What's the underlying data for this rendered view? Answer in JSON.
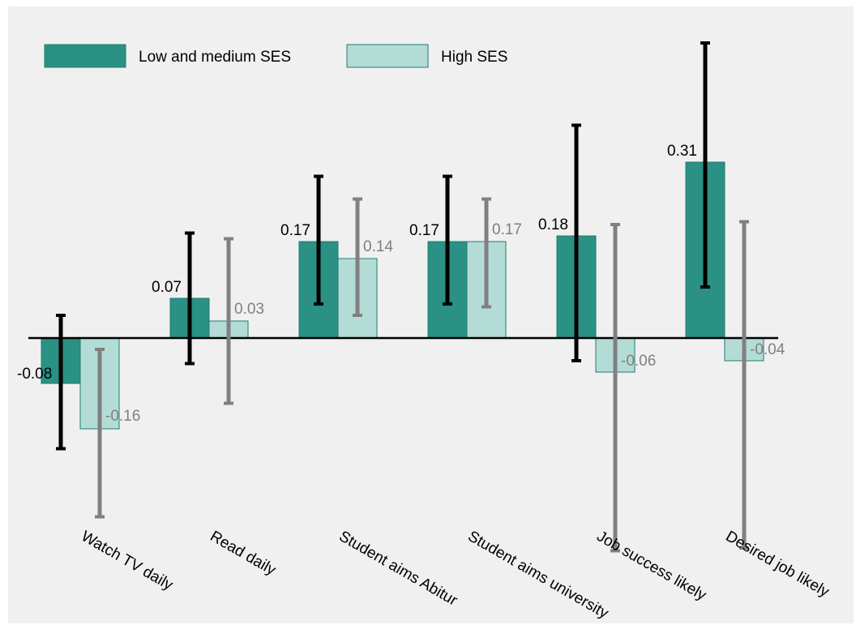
{
  "chart_data": {
    "type": "bar",
    "categories": [
      "Watch TV daily",
      "Read daily",
      "Student aims Abitur",
      "Student aims university",
      "Job success likely",
      "Desired job likely"
    ],
    "series": [
      {
        "name": "Low and medium SES",
        "values": [
          -0.08,
          0.07,
          0.17,
          0.17,
          0.18,
          0.31
        ],
        "labels": [
          "-0.08",
          "0.07",
          "0.17",
          "0.17",
          "0.18",
          "0.31"
        ],
        "ci_low": [
          -0.195,
          -0.045,
          0.06,
          0.06,
          -0.04,
          0.09
        ],
        "ci_high": [
          0.04,
          0.185,
          0.285,
          0.285,
          0.375,
          0.52
        ],
        "color": "#2a9184",
        "error_color": "#000000",
        "label_color": "#000000"
      },
      {
        "name": "High SES",
        "values": [
          -0.16,
          0.03,
          0.14,
          0.17,
          -0.06,
          -0.04
        ],
        "labels": [
          "-0.16",
          "0.03",
          "0.14",
          "0.17",
          "-0.06",
          "-0.04"
        ],
        "ci_low": [
          -0.315,
          -0.115,
          0.04,
          0.055,
          -0.375,
          -0.37
        ],
        "ci_high": [
          -0.02,
          0.175,
          0.245,
          0.245,
          0.2,
          0.205
        ],
        "color": "#b4dcd6",
        "error_color": "#808080",
        "label_color": "#808080"
      }
    ],
    "ylim": [
      -0.4,
      0.55
    ],
    "grid": false,
    "legend_position": "top-left",
    "background": "#f0f0f0"
  }
}
